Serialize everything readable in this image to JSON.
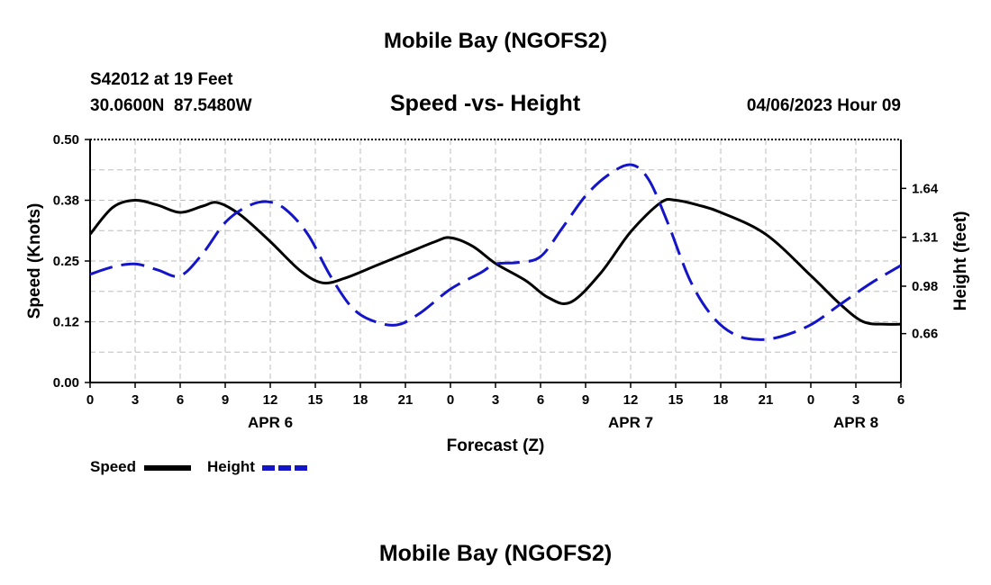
{
  "header": {
    "title": "Mobile Bay (NGOFS2)",
    "station": "S42012 at 19 Feet",
    "coords": "30.0600N  87.5480W",
    "subtitle": "Speed -vs- Height",
    "datetime": "04/06/2023 Hour 09"
  },
  "footer": {
    "title": "Mobile Bay (NGOFS2)"
  },
  "legend": {
    "speed_label": "Speed",
    "height_label": "Height",
    "speed_color": "#000000",
    "height_color": "#1414c8"
  },
  "chart_data": {
    "type": "line",
    "title": "Speed -vs- Height",
    "xlabel": "Forecast (Z)",
    "ylabel": "Speed (Knots)",
    "ylabel_right": "Height (feet)",
    "x_hours_range": [
      0,
      54
    ],
    "x_tick_labels": [
      "0",
      "3",
      "6",
      "9",
      "12",
      "15",
      "18",
      "21",
      "0",
      "3",
      "6",
      "9",
      "12",
      "15",
      "18",
      "21",
      "0",
      "3",
      "6"
    ],
    "date_labels": [
      {
        "label": "APR 6",
        "hour": 12
      },
      {
        "label": "APR 7",
        "hour": 36
      },
      {
        "label": "APR 8",
        "hour": 51
      }
    ],
    "y_left": {
      "range": [
        0.0,
        0.5
      ],
      "ticks": [
        "0.00",
        "0.12",
        "0.25",
        "0.38",
        "0.50"
      ]
    },
    "y_right": {
      "range": [
        0.33,
        1.97
      ],
      "ticks": [
        "0.66",
        "0.98",
        "1.31",
        "1.64"
      ]
    },
    "grid": true,
    "legend_position": "bottom-left",
    "series": [
      {
        "name": "Speed",
        "axis": "left",
        "color": "#000000",
        "dash": "solid",
        "x": [
          0,
          1.5,
          3,
          4.5,
          6,
          7.5,
          8.5,
          10,
          12,
          14,
          15.5,
          17,
          19,
          21,
          23,
          24,
          25.5,
          27,
          29,
          30.5,
          32,
          34,
          36,
          38,
          39,
          40.5,
          42,
          45,
          48,
          50,
          51.5,
          53,
          54
        ],
        "y": [
          0.305,
          0.36,
          0.375,
          0.365,
          0.35,
          0.363,
          0.37,
          0.345,
          0.29,
          0.23,
          0.205,
          0.215,
          0.24,
          0.265,
          0.29,
          0.298,
          0.28,
          0.245,
          0.21,
          0.175,
          0.165,
          0.225,
          0.31,
          0.37,
          0.375,
          0.365,
          0.35,
          0.305,
          0.22,
          0.16,
          0.125,
          0.12,
          0.12
        ]
      },
      {
        "name": "Height",
        "axis": "right",
        "color": "#1414c8",
        "dash": "dashed",
        "x": [
          0,
          1.5,
          3,
          4.5,
          6,
          7.5,
          9,
          10.5,
          11.8,
          13,
          14.5,
          16,
          17.5,
          19,
          20.5,
          22,
          24,
          26,
          27,
          28.5,
          30,
          31.5,
          33,
          34.5,
          36,
          37.2,
          38.5,
          40,
          41.5,
          43,
          44.5,
          46,
          48,
          50,
          52,
          54
        ],
        "y": [
          1.06,
          1.11,
          1.13,
          1.09,
          1.05,
          1.2,
          1.41,
          1.52,
          1.55,
          1.5,
          1.33,
          1.05,
          0.83,
          0.74,
          0.72,
          0.8,
          0.96,
          1.07,
          1.13,
          1.14,
          1.18,
          1.38,
          1.59,
          1.73,
          1.8,
          1.7,
          1.4,
          1.01,
          0.77,
          0.65,
          0.62,
          0.64,
          0.72,
          0.86,
          1.0,
          1.12
        ]
      }
    ]
  }
}
